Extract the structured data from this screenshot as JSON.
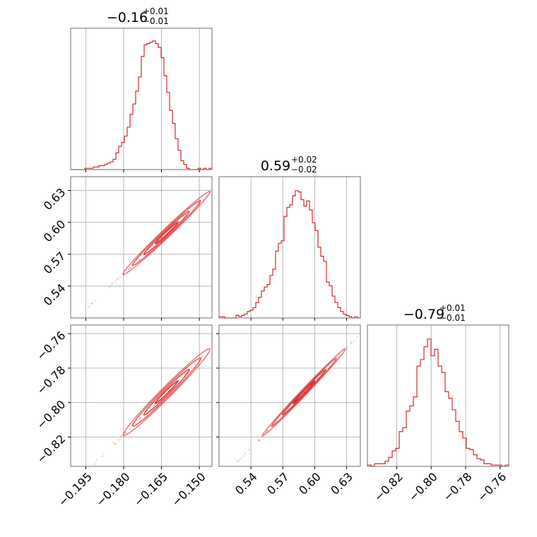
{
  "chart_data": {
    "type": "corner",
    "parameters": [
      {
        "title_value": "−0.16",
        "title_upper": "+0.01",
        "title_lower": "−0.01",
        "median": -0.163,
        "sigma": 0.0075,
        "range": [
          -0.201,
          -0.145
        ],
        "ticks": [
          -0.195,
          -0.18,
          -0.165,
          -0.15
        ],
        "tick_labels": [
          "−0.195",
          "−0.180",
          "−0.165",
          "−0.150"
        ],
        "hist_bins": [
          0,
          0,
          0,
          0,
          0,
          0.01,
          0.01,
          0.01,
          0.02,
          0.02,
          0.03,
          0.03,
          0.04,
          0.05,
          0.06,
          0.08,
          0.13,
          0.18,
          0.21,
          0.26,
          0.33,
          0.43,
          0.51,
          0.61,
          0.72,
          0.88,
          0.97,
          0.98,
          0.99,
          1.0,
          0.98,
          0.95,
          0.87,
          0.73,
          0.6,
          0.46,
          0.36,
          0.24,
          0.15,
          0.07,
          0.04,
          0.01,
          0,
          0,
          0,
          0.01,
          0,
          0.01,
          0,
          0.01
        ]
      },
      {
        "title_value": "0.59",
        "title_upper": "+0.02",
        "title_lower": "−0.02",
        "median": 0.59,
        "sigma": 0.017,
        "range": [
          0.51,
          0.643
        ],
        "ticks": [
          0.54,
          0.57,
          0.6,
          0.63
        ],
        "tick_labels": [
          "0.54",
          "0.57",
          "0.60",
          "0.63"
        ],
        "y_tick_labels": [
          "0.54",
          "0.57",
          "0.60",
          "0.63"
        ],
        "hist_bins": [
          0.01,
          0.01,
          0,
          0,
          0,
          0,
          0.02,
          0.01,
          0.02,
          0.03,
          0.05,
          0.06,
          0.08,
          0.12,
          0.16,
          0.21,
          0.24,
          0.26,
          0.33,
          0.38,
          0.52,
          0.58,
          0.6,
          0.79,
          0.86,
          0.88,
          0.95,
          0.99,
          0.98,
          0.92,
          0.87,
          0.91,
          0.84,
          0.74,
          0.68,
          0.55,
          0.48,
          0.44,
          0.28,
          0.25,
          0.17,
          0.12,
          0.08,
          0.05,
          0.03,
          0.02,
          0.01,
          0,
          0.01,
          0
        ]
      },
      {
        "title_value": "−0.79",
        "title_upper": "+0.01",
        "title_lower": "−0.01",
        "median": -0.794,
        "sigma": 0.011,
        "range": [
          -0.837,
          -0.755
        ],
        "ticks": [
          -0.82,
          -0.8,
          -0.78,
          -0.76
        ],
        "tick_labels": [
          "−0.82",
          "−0.80",
          "−0.78",
          "−0.76"
        ],
        "y_tick_labels": [
          "−0.82",
          "−0.80",
          "−0.78",
          "−0.76"
        ],
        "hist_bins": [
          0.01,
          0,
          0.02,
          0.02,
          0.02,
          0.04,
          0.07,
          0.12,
          0.14,
          0.27,
          0.3,
          0.43,
          0.47,
          0.54,
          0.78,
          0.83,
          0.93,
          0.99,
          0.86,
          0.91,
          0.78,
          0.73,
          0.58,
          0.53,
          0.44,
          0.35,
          0.27,
          0.22,
          0.14,
          0.13,
          0.09,
          0.06,
          0.05,
          0.02,
          0.02,
          0.01,
          0.01,
          0.01,
          0,
          0.01
        ]
      }
    ],
    "pairs": [
      {
        "x_param": 0,
        "y_param": 1,
        "correlation": 0.99
      },
      {
        "x_param": 0,
        "y_param": 2,
        "correlation": 0.985
      },
      {
        "x_param": 1,
        "y_param": 2,
        "correlation": 0.995
      }
    ],
    "colors": {
      "series": "#d62728",
      "grid": "#b0b0b0",
      "frame": "#6e6e6e"
    },
    "grid": true
  }
}
